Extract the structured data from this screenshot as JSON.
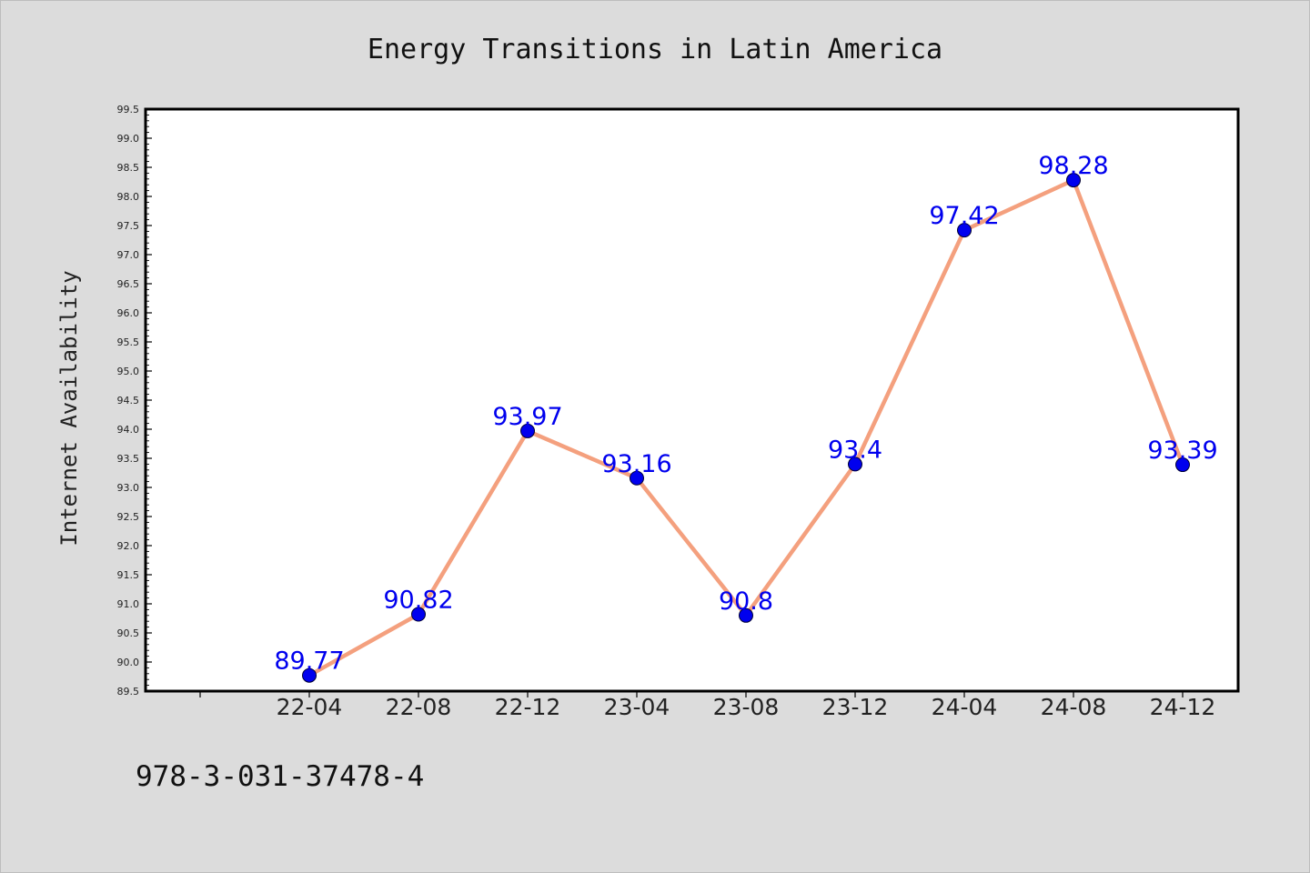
{
  "chart_data": {
    "type": "line",
    "title": "Energy Transitions in Latin America",
    "xlabel": "",
    "ylabel": "Internet Availability",
    "categories": [
      "22-04",
      "22-08",
      "22-12",
      "23-04",
      "23-08",
      "23-12",
      "24-04",
      "24-08",
      "24-12"
    ],
    "series": [
      {
        "values": [
          89.77,
          90.82,
          93.97,
          93.16,
          90.8,
          93.4,
          97.42,
          98.28,
          93.39
        ],
        "labels": [
          "89.77",
          "90.82",
          "93.97",
          "93.16",
          "90.8",
          "93.4",
          "97.42",
          "98.28",
          "93.39"
        ],
        "line_color": "#f4a07e",
        "marker_color": "#0000ee",
        "label_color": "#0000ee"
      }
    ],
    "ylim": [
      89.5,
      99.5
    ],
    "yticks": [
      "89.5",
      "90.0",
      "90.5",
      "91.0",
      "91.5",
      "92.0",
      "92.5",
      "93.0",
      "93.5",
      "94.0",
      "94.5",
      "95.0",
      "95.5",
      "96.0",
      "96.5",
      "97.0",
      "97.5",
      "98.0",
      "98.5",
      "99.0",
      "99.5"
    ],
    "grid": false,
    "legend": "none"
  },
  "footnote": "978-3-031-37478-4",
  "colors": {
    "background": "#dcdcdc",
    "plot_background": "#ffffff",
    "axis": "#000000"
  }
}
